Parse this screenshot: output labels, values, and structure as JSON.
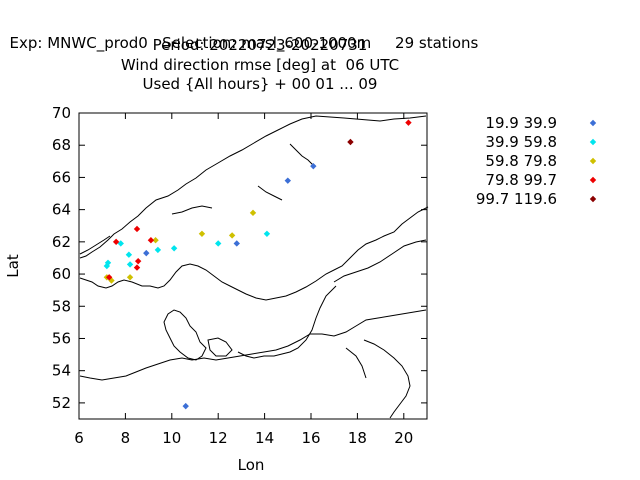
{
  "header": {
    "exp": "Exp: MNWC_prod0",
    "selection": "Selection: masl_600-1000m",
    "stations": "29 stations",
    "period": "Period: 20220723-20220731",
    "variable": "Wind direction rmse [deg] at  06 UTC",
    "used": "Used {All hours} + 00 01 ... 09"
  },
  "chart_data": {
    "type": "scatter",
    "xlabel": "Lon",
    "ylabel": "Lat",
    "xlim": [
      6,
      21
    ],
    "ylim": [
      51,
      70
    ],
    "xticks": [
      6,
      8,
      10,
      12,
      14,
      16,
      18,
      20
    ],
    "yticks": [
      52,
      54,
      56,
      58,
      60,
      62,
      64,
      66,
      68,
      70
    ],
    "grid": false,
    "legend_position": "right",
    "series": [
      {
        "name": "19.9 39.9",
        "color": "#3c6fd6",
        "points": [
          [
            10.6,
            51.8
          ],
          [
            8.9,
            61.3
          ],
          [
            12.8,
            61.9
          ],
          [
            15.0,
            65.8
          ],
          [
            16.1,
            66.7
          ]
        ]
      },
      {
        "name": "39.9 59.8",
        "color": "#00e5ee",
        "points": [
          [
            7.2,
            60.5
          ],
          [
            7.25,
            60.7
          ],
          [
            7.8,
            61.9
          ],
          [
            8.15,
            61.2
          ],
          [
            8.2,
            60.6
          ],
          [
            9.4,
            61.5
          ],
          [
            10.1,
            61.6
          ],
          [
            12.0,
            61.9
          ],
          [
            14.1,
            62.5
          ]
        ]
      },
      {
        "name": "59.8 79.8",
        "color": "#cfc000",
        "points": [
          [
            7.2,
            59.8
          ],
          [
            7.4,
            59.6
          ],
          [
            8.2,
            59.8
          ],
          [
            9.3,
            62.1
          ],
          [
            11.3,
            62.5
          ],
          [
            12.6,
            62.4
          ],
          [
            13.5,
            63.8
          ]
        ]
      },
      {
        "name": "79.8 99.7",
        "color": "#ee0000",
        "points": [
          [
            7.3,
            59.8
          ],
          [
            7.6,
            62.0
          ],
          [
            8.5,
            62.8
          ],
          [
            8.5,
            60.4
          ],
          [
            8.55,
            60.8
          ],
          [
            9.1,
            62.1
          ],
          [
            20.2,
            69.4
          ]
        ]
      },
      {
        "name": "99.7 119.6",
        "color": "#8b0000",
        "points": [
          [
            17.7,
            68.2
          ]
        ]
      }
    ]
  }
}
